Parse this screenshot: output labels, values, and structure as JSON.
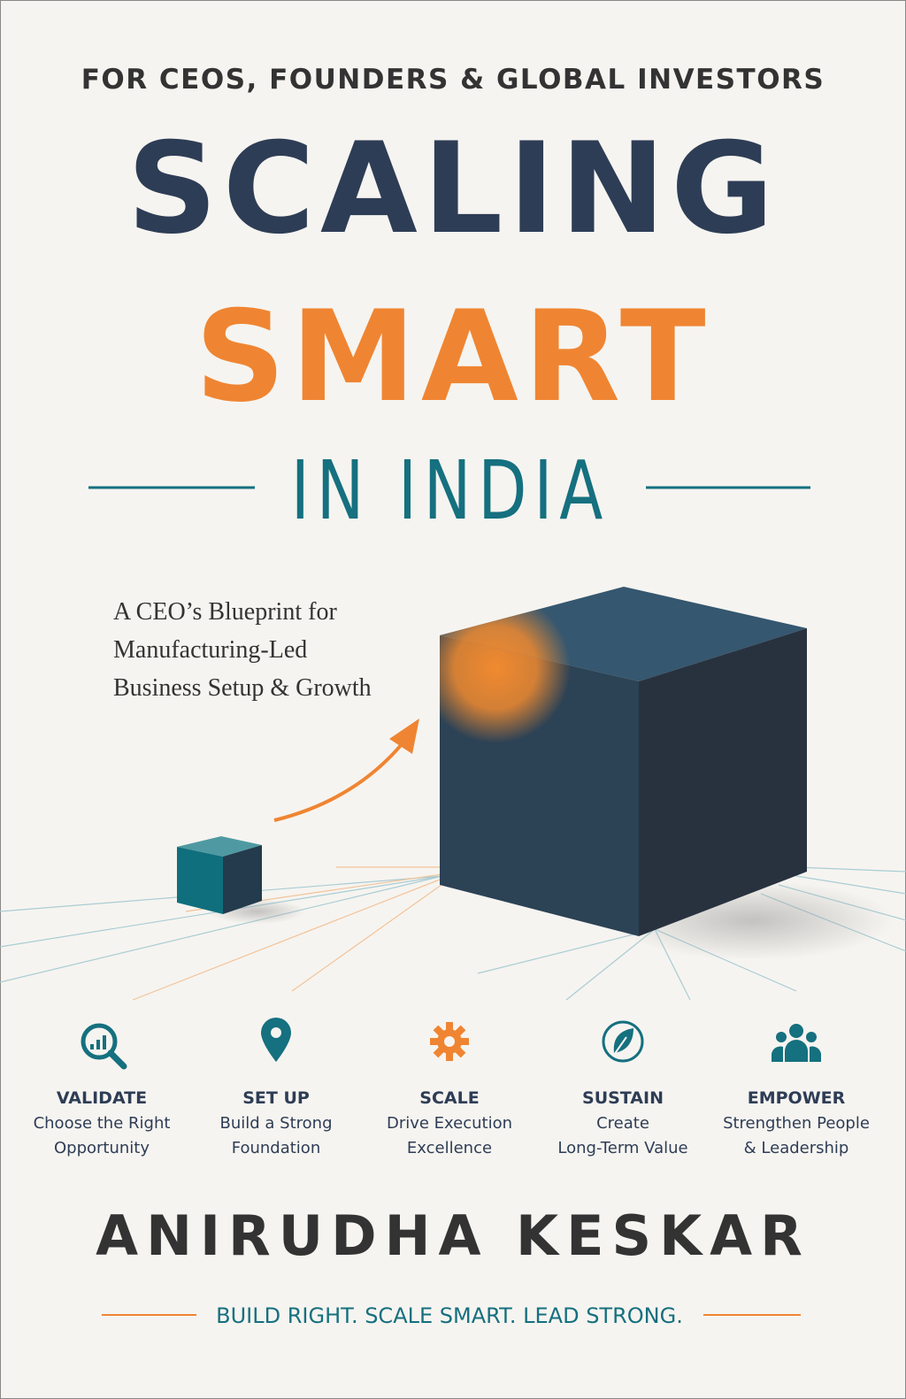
{
  "tagline_top": "FOR CEOS, FOUNDERS & GLOBAL INVESTORS",
  "title": {
    "line1": "SCALING",
    "line2": "SMART",
    "line3": "IN INDIA"
  },
  "subtitle": [
    "A CEO’s Blueprint for",
    "Manufacturing-Led",
    "Business Setup & Growth"
  ],
  "pillars": [
    {
      "heading": "VALIDATE",
      "line1": "Choose the Right",
      "line2": "Opportunity"
    },
    {
      "heading": "SET UP",
      "line1": "Build a Strong",
      "line2": "Foundation"
    },
    {
      "heading": "SCALE",
      "line1": "Drive Execution",
      "line2": "Excellence"
    },
    {
      "heading": "SUSTAIN",
      "line1": "Create",
      "line2": "Long-Term Value"
    },
    {
      "heading": "EMPOWER",
      "line1": "Strengthen People",
      "line2": "& Leadership"
    }
  ],
  "author": "ANIRUDHA KESKAR",
  "motto": "BUILD RIGHT. SCALE SMART. LEAD STRONG."
}
